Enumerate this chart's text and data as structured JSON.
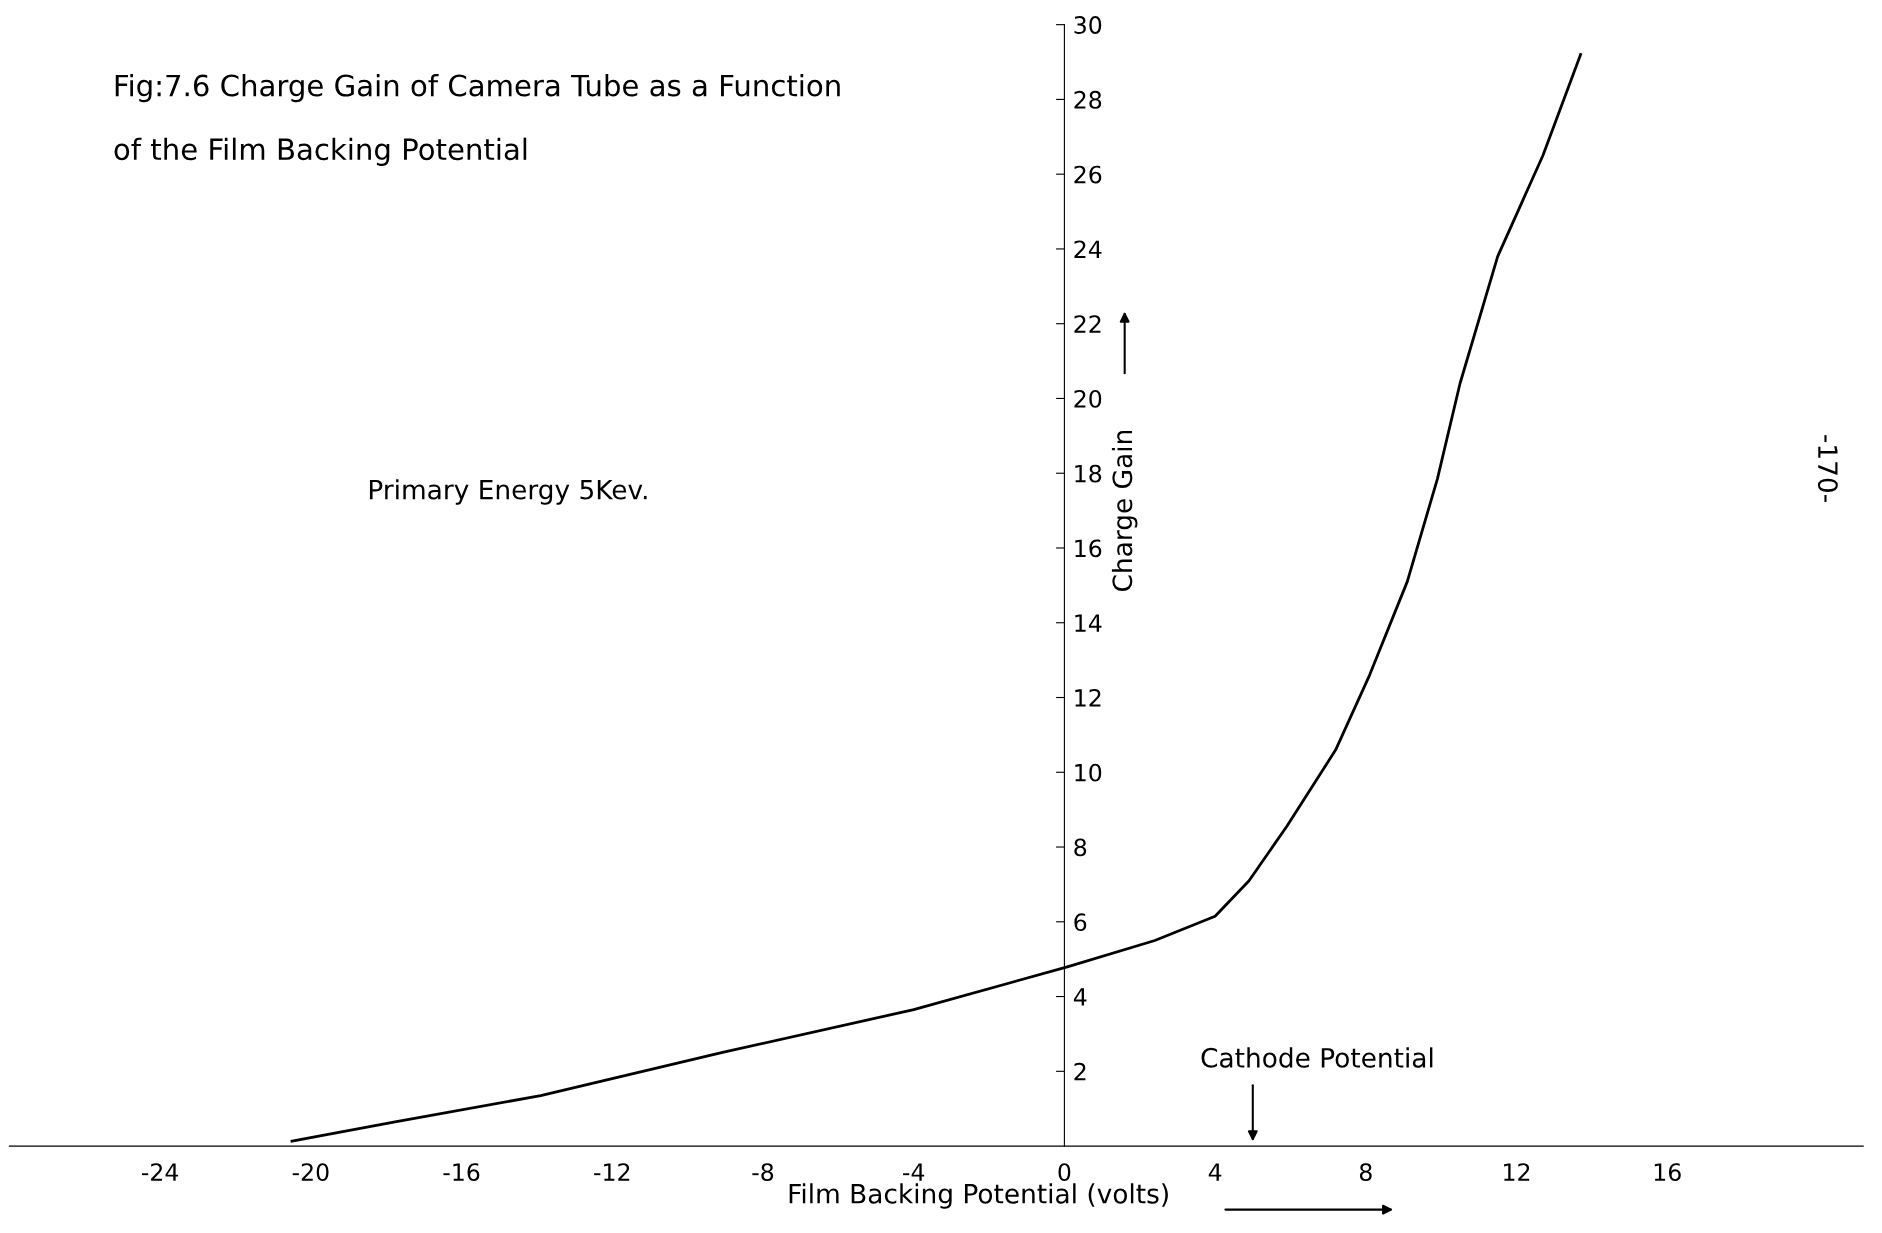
{
  "chart_data": {
    "type": "line",
    "title": "Fig:7.6 Charge Gain of Camera Tube as a Function\nof the Film Backing Potential",
    "xlabel": "Film Backing Potential (volts)",
    "ylabel": "Charge Gain",
    "x": [
      -20.5,
      -17.8,
      -13.9,
      -9.1,
      -4.0,
      0.1,
      2.4,
      4.0,
      4.9,
      5.9,
      7.2,
      8.1,
      9.1,
      9.9,
      10.5,
      11.5,
      12.7,
      13.7
    ],
    "series": [
      {
        "color": "#000000",
        "values": [
          0.13,
          0.64,
          1.35,
          2.5,
          3.65,
          4.8,
          5.5,
          6.15,
          7.1,
          8.55,
          10.6,
          12.6,
          15.1,
          17.85,
          20.4,
          23.8,
          26.5,
          29.2
        ]
      }
    ],
    "xlim": [
      -28,
      21.2
    ],
    "ylim": [
      0,
      30
    ],
    "xticks": [
      -24,
      -20,
      -16,
      -12,
      -8,
      -4,
      0,
      4,
      8,
      12,
      16
    ],
    "yticks": [
      2,
      4,
      6,
      8,
      10,
      12,
      14,
      16,
      18,
      20,
      22,
      24,
      26,
      28,
      30
    ],
    "annotations": [
      "Primary Energy 5Kev.",
      "Cathode Potential",
      "-170-"
    ],
    "grid": false,
    "legend": false,
    "marker": "none",
    "line_style": "solid"
  }
}
